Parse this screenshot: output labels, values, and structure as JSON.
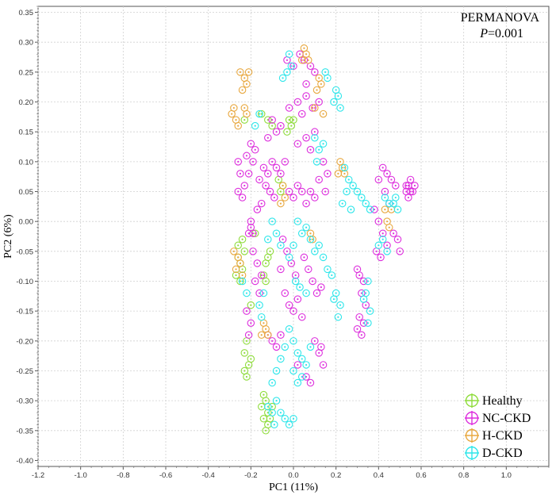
{
  "chart_data": {
    "type": "scatter",
    "title": "",
    "xlabel": "PC1 (11%)",
    "ylabel": "PC2 (6%)",
    "xlim": [
      -1.2,
      1.2
    ],
    "ylim": [
      -0.41,
      0.36
    ],
    "xticks": [
      -1.2,
      -1.0,
      -0.8,
      -0.6,
      -0.4,
      -0.2,
      0.0,
      0.2,
      0.4,
      0.6,
      0.8,
      1.0
    ],
    "xtick_labels": [
      "-1.2",
      "-1.0",
      "-0.8",
      "-0.6",
      "-0.4",
      "-0.2",
      "0.0",
      "0.2",
      "0.4",
      "0.6",
      "0.8",
      "1.0"
    ],
    "yticks": [
      0.35,
      0.3,
      0.25,
      0.2,
      0.15,
      0.1,
      0.05,
      0.0,
      -0.05,
      -0.1,
      -0.15,
      -0.2,
      -0.25,
      -0.3,
      -0.35,
      -0.4
    ],
    "ytick_labels": [
      "0.35",
      "0.30",
      "0.25",
      "0.20",
      "0.15",
      "0.10",
      "0.05",
      "0.00",
      "-0.05",
      "-0.10",
      "-0.15",
      "-0.20",
      "-0.25",
      "-0.30",
      "-0.35",
      "-0.40"
    ],
    "grid": true,
    "legend_position": "bottom-right",
    "annotation": {
      "line1": "PERMANOVA",
      "line2_italic": "P",
      "line2_rest": "=0.001"
    },
    "series": [
      {
        "name": "Healthy",
        "color": "#8fdc3c",
        "points": [
          [
            -0.25,
            -0.07
          ],
          [
            -0.26,
            -0.06
          ],
          [
            -0.24,
            -0.08
          ],
          [
            -0.27,
            -0.09
          ],
          [
            -0.23,
            -0.05
          ],
          [
            -0.25,
            -0.1
          ],
          [
            -0.26,
            -0.04
          ],
          [
            -0.24,
            -0.03
          ],
          [
            -0.13,
            -0.07
          ],
          [
            -0.12,
            -0.06
          ],
          [
            -0.14,
            -0.09
          ],
          [
            -0.11,
            -0.05
          ],
          [
            -0.13,
            -0.1
          ],
          [
            -0.22,
            -0.2
          ],
          [
            -0.23,
            -0.22
          ],
          [
            -0.21,
            -0.24
          ],
          [
            -0.22,
            -0.26
          ],
          [
            -0.2,
            -0.23
          ],
          [
            -0.23,
            -0.25
          ],
          [
            -0.14,
            -0.29
          ],
          [
            -0.13,
            -0.3
          ],
          [
            -0.12,
            -0.32
          ],
          [
            -0.15,
            -0.31
          ],
          [
            -0.14,
            -0.33
          ],
          [
            -0.12,
            -0.34
          ],
          [
            -0.13,
            -0.35
          ],
          [
            -0.1,
            -0.31
          ],
          [
            -0.11,
            -0.33
          ],
          [
            -0.02,
            0.17
          ],
          [
            -0.01,
            0.16
          ],
          [
            -0.03,
            0.15
          ],
          [
            0.0,
            0.17
          ],
          [
            -0.12,
            0.17
          ],
          [
            -0.15,
            0.18
          ],
          [
            -0.1,
            0.16
          ],
          [
            -0.05,
            0.06
          ],
          [
            -0.07,
            0.07
          ],
          [
            -0.06,
            0.05
          ],
          [
            -0.23,
            0.17
          ],
          [
            -0.2,
            -0.14
          ],
          [
            -0.18,
            -0.02
          ]
        ]
      },
      {
        "name": "NC-CKD",
        "color": "#dd2fdd",
        "points": [
          [
            0.54,
            0.06
          ],
          [
            0.55,
            0.05
          ],
          [
            0.53,
            0.06
          ],
          [
            0.55,
            0.07
          ],
          [
            0.56,
            0.05
          ],
          [
            0.54,
            0.04
          ],
          [
            0.53,
            0.05
          ],
          [
            0.57,
            0.06
          ],
          [
            0.05,
            0.27
          ],
          [
            0.08,
            0.26
          ],
          [
            0.03,
            0.28
          ],
          [
            0.1,
            0.25
          ],
          [
            -0.03,
            0.27
          ],
          [
            0.0,
            0.26
          ],
          [
            0.06,
            0.23
          ],
          [
            0.02,
            0.2
          ],
          [
            0.06,
            0.21
          ],
          [
            0.09,
            0.19
          ],
          [
            0.12,
            0.2
          ],
          [
            0.04,
            0.18
          ],
          [
            -0.02,
            0.19
          ],
          [
            -0.1,
            0.17
          ],
          [
            -0.08,
            0.15
          ],
          [
            -0.12,
            0.14
          ],
          [
            -0.06,
            0.16
          ],
          [
            -0.2,
            0.13
          ],
          [
            -0.18,
            0.12
          ],
          [
            -0.22,
            0.11
          ],
          [
            -0.19,
            0.1
          ],
          [
            -0.21,
            0.08
          ],
          [
            -0.26,
            0.1
          ],
          [
            -0.25,
            0.08
          ],
          [
            -0.14,
            0.09
          ],
          [
            -0.12,
            0.08
          ],
          [
            -0.1,
            0.1
          ],
          [
            -0.08,
            0.09
          ],
          [
            -0.06,
            0.08
          ],
          [
            -0.04,
            0.1
          ],
          [
            -0.16,
            0.07
          ],
          [
            -0.02,
            0.05
          ],
          [
            0.0,
            0.04
          ],
          [
            0.02,
            0.06
          ],
          [
            0.04,
            0.05
          ],
          [
            0.06,
            0.03
          ],
          [
            0.08,
            0.05
          ],
          [
            0.1,
            0.04
          ],
          [
            -0.13,
            0.06
          ],
          [
            -0.11,
            0.05
          ],
          [
            -0.09,
            0.04
          ],
          [
            -0.15,
            0.03
          ],
          [
            -0.17,
            0.02
          ],
          [
            -0.2,
            -0.01
          ],
          [
            -0.21,
            -0.02
          ],
          [
            -0.19,
            -0.02
          ],
          [
            -0.2,
            0.0
          ],
          [
            -0.19,
            -0.05
          ],
          [
            -0.17,
            -0.07
          ],
          [
            -0.15,
            -0.09
          ],
          [
            -0.18,
            -0.1
          ],
          [
            -0.16,
            -0.12
          ],
          [
            -0.05,
            -0.03
          ],
          [
            -0.03,
            -0.05
          ],
          [
            -0.01,
            -0.07
          ],
          [
            0.01,
            -0.09
          ],
          [
            -0.06,
            -0.08
          ],
          [
            0.05,
            -0.06
          ],
          [
            0.07,
            -0.08
          ],
          [
            0.09,
            -0.1
          ],
          [
            0.11,
            -0.12
          ],
          [
            0.13,
            -0.11
          ],
          [
            -0.04,
            -0.12
          ],
          [
            -0.02,
            -0.14
          ],
          [
            0.0,
            -0.15
          ],
          [
            0.02,
            -0.13
          ],
          [
            0.04,
            -0.16
          ],
          [
            -0.12,
            -0.19
          ],
          [
            -0.1,
            -0.2
          ],
          [
            -0.08,
            -0.21
          ],
          [
            -0.06,
            -0.19
          ],
          [
            0.1,
            -0.2
          ],
          [
            0.12,
            -0.22
          ],
          [
            0.14,
            -0.24
          ],
          [
            0.13,
            -0.21
          ],
          [
            -0.22,
            -0.15
          ],
          [
            -0.2,
            -0.17
          ],
          [
            -0.21,
            -0.19
          ],
          [
            0.42,
            0.09
          ],
          [
            0.44,
            0.08
          ],
          [
            0.46,
            0.07
          ],
          [
            0.48,
            0.06
          ],
          [
            0.4,
            0.07
          ],
          [
            0.43,
            0.05
          ],
          [
            0.45,
            0.03
          ],
          [
            0.38,
            0.02
          ],
          [
            0.4,
            0.0
          ],
          [
            0.42,
            -0.02
          ],
          [
            0.44,
            -0.04
          ],
          [
            0.39,
            -0.05
          ],
          [
            0.41,
            -0.06
          ],
          [
            0.47,
            -0.02
          ],
          [
            0.49,
            -0.03
          ],
          [
            0.5,
            -0.05
          ],
          [
            0.31,
            -0.09
          ],
          [
            0.33,
            -0.1
          ],
          [
            0.32,
            -0.12
          ],
          [
            0.3,
            -0.08
          ],
          [
            0.34,
            -0.14
          ],
          [
            0.31,
            -0.16
          ],
          [
            0.33,
            -0.17
          ],
          [
            0.32,
            -0.19
          ],
          [
            0.3,
            -0.18
          ],
          [
            0.14,
            0.1
          ],
          [
            0.16,
            0.08
          ],
          [
            0.12,
            0.07
          ],
          [
            0.15,
            0.05
          ],
          [
            0.08,
            0.12
          ],
          [
            0.06,
            0.14
          ],
          [
            0.1,
            0.15
          ],
          [
            0.02,
            0.13
          ],
          [
            -0.24,
            0.04
          ],
          [
            -0.26,
            0.05
          ],
          [
            -0.23,
            0.06
          ],
          [
            0.06,
            -0.26
          ],
          [
            0.08,
            -0.27
          ],
          [
            0.02,
            -0.24
          ]
        ]
      },
      {
        "name": "H-CKD",
        "color": "#e8a840",
        "points": [
          [
            -0.23,
            0.24
          ],
          [
            -0.25,
            0.25
          ],
          [
            -0.22,
            0.23
          ],
          [
            -0.24,
            0.22
          ],
          [
            -0.21,
            0.25
          ],
          [
            -0.28,
            0.19
          ],
          [
            -0.27,
            0.17
          ],
          [
            -0.26,
            0.16
          ],
          [
            -0.29,
            0.18
          ],
          [
            -0.23,
            0.19
          ],
          [
            -0.22,
            0.18
          ],
          [
            0.05,
            0.29
          ],
          [
            0.06,
            0.28
          ],
          [
            0.04,
            0.27
          ],
          [
            0.07,
            0.27
          ],
          [
            0.12,
            0.24
          ],
          [
            0.13,
            0.23
          ],
          [
            0.11,
            0.22
          ],
          [
            0.1,
            0.19
          ],
          [
            0.14,
            0.18
          ],
          [
            0.22,
            0.1
          ],
          [
            0.23,
            0.09
          ],
          [
            0.24,
            0.08
          ],
          [
            0.21,
            0.08
          ],
          [
            0.44,
            0.0
          ],
          [
            0.45,
            -0.01
          ],
          [
            0.46,
            0.02
          ],
          [
            0.43,
            0.02
          ],
          [
            -0.26,
            -0.06
          ],
          [
            -0.27,
            -0.08
          ],
          [
            -0.25,
            -0.07
          ],
          [
            -0.28,
            -0.05
          ],
          [
            -0.24,
            -0.09
          ],
          [
            -0.14,
            -0.17
          ],
          [
            -0.13,
            -0.18
          ],
          [
            -0.12,
            -0.19
          ],
          [
            -0.15,
            -0.19
          ],
          [
            -0.06,
            0.03
          ],
          [
            -0.04,
            0.04
          ],
          [
            -0.05,
            0.06
          ],
          [
            0.08,
            -0.02
          ],
          [
            0.09,
            -0.03
          ]
        ]
      },
      {
        "name": "D-CKD",
        "color": "#2ee6ea",
        "points": [
          [
            -0.03,
            0.25
          ],
          [
            -0.01,
            0.26
          ],
          [
            -0.02,
            0.28
          ],
          [
            -0.05,
            0.24
          ],
          [
            0.2,
            0.22
          ],
          [
            0.21,
            0.21
          ],
          [
            0.19,
            0.2
          ],
          [
            0.22,
            0.19
          ],
          [
            0.15,
            0.25
          ],
          [
            0.16,
            0.24
          ],
          [
            0.1,
            0.14
          ],
          [
            0.12,
            0.12
          ],
          [
            0.14,
            0.13
          ],
          [
            0.11,
            0.1
          ],
          [
            0.24,
            0.09
          ],
          [
            0.26,
            0.07
          ],
          [
            0.28,
            0.06
          ],
          [
            0.25,
            0.05
          ],
          [
            0.23,
            0.03
          ],
          [
            0.27,
            0.02
          ],
          [
            0.3,
            0.05
          ],
          [
            0.32,
            0.04
          ],
          [
            0.34,
            0.03
          ],
          [
            0.36,
            0.02
          ],
          [
            0.45,
            0.03
          ],
          [
            0.47,
            0.03
          ],
          [
            0.49,
            0.02
          ],
          [
            0.48,
            0.04
          ],
          [
            0.43,
            0.04
          ],
          [
            0.42,
            -0.03
          ],
          [
            0.4,
            -0.04
          ],
          [
            0.44,
            -0.05
          ],
          [
            0.02,
            0.0
          ],
          [
            0.04,
            -0.02
          ],
          [
            0.06,
            -0.01
          ],
          [
            0.08,
            -0.03
          ],
          [
            0.1,
            -0.05
          ],
          [
            0.12,
            -0.04
          ],
          [
            0.0,
            -0.04
          ],
          [
            -0.02,
            -0.06
          ],
          [
            0.01,
            -0.1
          ],
          [
            0.03,
            -0.11
          ],
          [
            0.06,
            -0.12
          ],
          [
            0.14,
            -0.06
          ],
          [
            0.16,
            -0.08
          ],
          [
            0.18,
            -0.09
          ],
          [
            0.2,
            -0.12
          ],
          [
            0.22,
            -0.14
          ],
          [
            0.21,
            -0.16
          ],
          [
            0.19,
            -0.13
          ],
          [
            0.35,
            -0.1
          ],
          [
            0.34,
            -0.12
          ],
          [
            0.33,
            -0.13
          ],
          [
            0.36,
            -0.15
          ],
          [
            0.35,
            -0.17
          ],
          [
            -0.02,
            -0.18
          ],
          [
            0.0,
            -0.2
          ],
          [
            0.02,
            -0.22
          ],
          [
            0.04,
            -0.23
          ],
          [
            0.06,
            -0.24
          ],
          [
            0.08,
            -0.21
          ],
          [
            -0.04,
            -0.21
          ],
          [
            -0.06,
            -0.23
          ],
          [
            -0.08,
            -0.25
          ],
          [
            -0.1,
            -0.27
          ],
          [
            -0.08,
            -0.3
          ],
          [
            -0.06,
            -0.32
          ],
          [
            -0.04,
            -0.33
          ],
          [
            -0.02,
            -0.34
          ],
          [
            0.0,
            -0.33
          ],
          [
            -0.1,
            -0.32
          ],
          [
            -0.12,
            -0.31
          ],
          [
            -0.09,
            -0.34
          ],
          [
            0.04,
            -0.26
          ],
          [
            0.02,
            -0.27
          ],
          [
            0.0,
            -0.25
          ],
          [
            -0.1,
            0.0
          ],
          [
            -0.08,
            -0.02
          ],
          [
            -0.06,
            -0.04
          ],
          [
            -0.12,
            -0.03
          ],
          [
            -0.14,
            -0.12
          ],
          [
            -0.16,
            -0.14
          ],
          [
            -0.15,
            -0.16
          ],
          [
            -0.24,
            -0.1
          ],
          [
            -0.22,
            -0.12
          ],
          [
            -0.16,
            0.18
          ],
          [
            -0.18,
            0.16
          ]
        ]
      }
    ]
  }
}
